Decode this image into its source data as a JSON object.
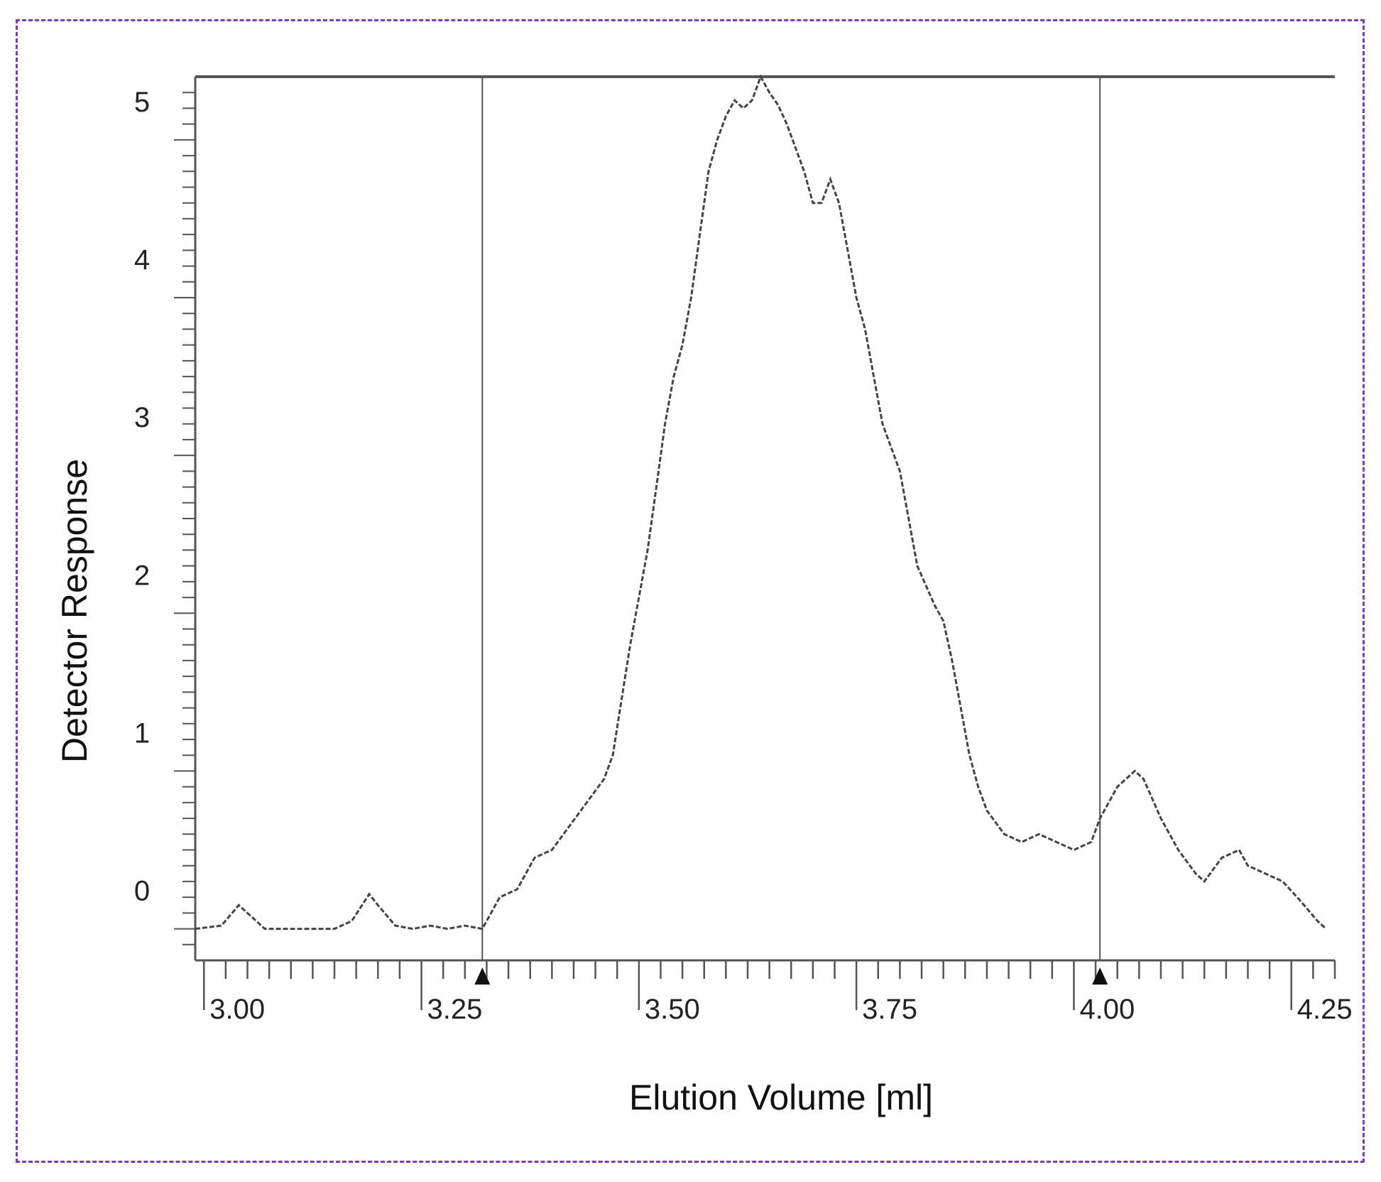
{
  "chart_data": {
    "type": "line",
    "title": "",
    "xlabel": "Elution Volume [ml]",
    "ylabel": "Detector Response",
    "xlim": [
      2.99,
      4.3
    ],
    "ylim": [
      -0.2,
      5.4
    ],
    "x_ticks": [
      "3.00",
      "3.25",
      "3.50",
      "3.75",
      "4.00",
      "4.25"
    ],
    "y_ticks": [
      "0",
      "1",
      "2",
      "3",
      "4",
      "5"
    ],
    "markers": [
      {
        "x": 3.32
      },
      {
        "x": 4.03
      }
    ],
    "series": [
      {
        "x": [
          2.99,
          3.02,
          3.04,
          3.05,
          3.07,
          3.1,
          3.12,
          3.15,
          3.17,
          3.19,
          3.2,
          3.22,
          3.24,
          3.26,
          3.28,
          3.3,
          3.32,
          3.34,
          3.36,
          3.38,
          3.4,
          3.42,
          3.44,
          3.46,
          3.47,
          3.48,
          3.49,
          3.5,
          3.51,
          3.52,
          3.53,
          3.54,
          3.55,
          3.56,
          3.57,
          3.58,
          3.59,
          3.6,
          3.61,
          3.62,
          3.63,
          3.64,
          3.65,
          3.66,
          3.67,
          3.68,
          3.69,
          3.7,
          3.71,
          3.72,
          3.73,
          3.74,
          3.75,
          3.76,
          3.77,
          3.78,
          3.8,
          3.81,
          3.82,
          3.84,
          3.85,
          3.86,
          3.87,
          3.88,
          3.89,
          3.9,
          3.92,
          3.94,
          3.96,
          3.98,
          4.0,
          4.02,
          4.03,
          4.05,
          4.07,
          4.08,
          4.1,
          4.12,
          4.14,
          4.15,
          4.17,
          4.19,
          4.2,
          4.22,
          4.24,
          4.26,
          4.28,
          4.29
        ],
        "y": [
          0.0,
          0.02,
          0.15,
          0.1,
          0.0,
          0.0,
          0.0,
          0.0,
          0.05,
          0.22,
          0.15,
          0.02,
          0.0,
          0.02,
          0.0,
          0.02,
          0.0,
          0.2,
          0.25,
          0.45,
          0.5,
          0.65,
          0.8,
          0.95,
          1.1,
          1.45,
          1.8,
          2.1,
          2.4,
          2.8,
          3.2,
          3.5,
          3.7,
          4.0,
          4.4,
          4.8,
          5.0,
          5.15,
          5.25,
          5.2,
          5.25,
          5.4,
          5.3,
          5.22,
          5.1,
          4.95,
          4.8,
          4.6,
          4.6,
          4.75,
          4.6,
          4.3,
          4.0,
          3.8,
          3.5,
          3.2,
          2.9,
          2.6,
          2.3,
          2.05,
          1.95,
          1.7,
          1.4,
          1.1,
          0.9,
          0.75,
          0.6,
          0.55,
          0.6,
          0.55,
          0.5,
          0.55,
          0.7,
          0.9,
          1.0,
          0.95,
          0.7,
          0.5,
          0.35,
          0.3,
          0.45,
          0.5,
          0.4,
          0.35,
          0.3,
          0.18,
          0.05,
          0.0
        ]
      }
    ],
    "grid": false,
    "legend": "none"
  }
}
